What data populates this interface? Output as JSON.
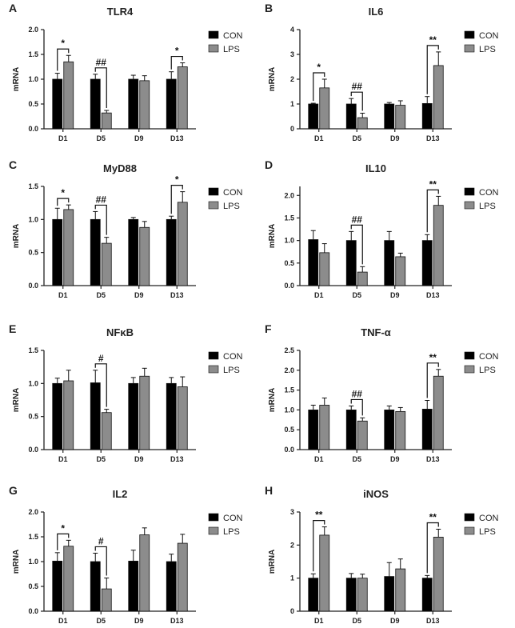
{
  "colors": {
    "con": "#000000",
    "lps": "#8c8c8c",
    "axis": "#222222"
  },
  "legend": {
    "con": "CON",
    "lps": "LPS"
  },
  "chart_data": [
    {
      "type": "bar",
      "panel": "A",
      "title": "TLR4",
      "ylabel": "mRNA",
      "ylim": [
        0,
        2.0
      ],
      "yticks": [
        "0.0",
        "0.5",
        "1.0",
        "1.5",
        "2.0"
      ],
      "ytick_values": [
        0,
        0.5,
        1,
        1.5,
        2
      ],
      "categories": [
        "D1",
        "D5",
        "D9",
        "D13"
      ],
      "series": [
        {
          "name": "CON",
          "values": [
            1.0,
            1.0,
            1.0,
            1.0
          ],
          "errors": [
            0.12,
            0.1,
            0.08,
            0.15
          ]
        },
        {
          "name": "LPS",
          "values": [
            1.35,
            0.32,
            0.97,
            1.25
          ],
          "errors": [
            0.13,
            0.05,
            0.1,
            0.08
          ]
        }
      ],
      "annotations": [
        {
          "category": "D1",
          "label": "*"
        },
        {
          "category": "D5",
          "label": "##"
        },
        {
          "category": "D13",
          "label": "*"
        }
      ]
    },
    {
      "type": "bar",
      "panel": "B",
      "title": "IL6",
      "ylabel": "mRNA",
      "ylim": [
        0,
        4
      ],
      "yticks": [
        "0",
        "1",
        "2",
        "3",
        "4"
      ],
      "ytick_values": [
        0,
        1,
        2,
        3,
        4
      ],
      "categories": [
        "D1",
        "D5",
        "D9",
        "D13"
      ],
      "series": [
        {
          "name": "CON",
          "values": [
            1.0,
            1.0,
            1.0,
            1.02
          ],
          "errors": [
            0.03,
            0.22,
            0.06,
            0.28
          ]
        },
        {
          "name": "LPS",
          "values": [
            1.65,
            0.45,
            0.95,
            2.55
          ],
          "errors": [
            0.35,
            0.18,
            0.18,
            0.55
          ]
        }
      ],
      "annotations": [
        {
          "category": "D1",
          "label": "*"
        },
        {
          "category": "D5",
          "label": "##"
        },
        {
          "category": "D13",
          "label": "**"
        }
      ]
    },
    {
      "type": "bar",
      "panel": "C",
      "title": "MyD88",
      "ylabel": "mRNA",
      "ylim": [
        0,
        1.5
      ],
      "yticks": [
        "0.0",
        "0.5",
        "1.0",
        "1.5"
      ],
      "ytick_values": [
        0,
        0.5,
        1,
        1.5
      ],
      "categories": [
        "D1",
        "D5",
        "D9",
        "D13"
      ],
      "series": [
        {
          "name": "CON",
          "values": [
            1.0,
            1.0,
            1.0,
            1.0
          ],
          "errors": [
            0.17,
            0.12,
            0.03,
            0.05
          ]
        },
        {
          "name": "LPS",
          "values": [
            1.15,
            0.64,
            0.88,
            1.26
          ],
          "errors": [
            0.07,
            0.09,
            0.09,
            0.16
          ]
        }
      ],
      "annotations": [
        {
          "category": "D1",
          "label": "*"
        },
        {
          "category": "D5",
          "label": "##"
        },
        {
          "category": "D13",
          "label": "*"
        }
      ]
    },
    {
      "type": "bar",
      "panel": "D",
      "title": "IL10",
      "ylabel": "mRNA",
      "ylim": [
        0,
        2.2
      ],
      "yticks": [
        "0.0",
        "0.5",
        "1.0",
        "1.5",
        "2.0"
      ],
      "ytick_values": [
        0,
        0.5,
        1,
        1.5,
        2
      ],
      "categories": [
        "D1",
        "D5",
        "D9",
        "D13"
      ],
      "series": [
        {
          "name": "CON",
          "values": [
            1.02,
            1.0,
            1.0,
            1.0
          ],
          "errors": [
            0.2,
            0.2,
            0.2,
            0.13
          ]
        },
        {
          "name": "LPS",
          "values": [
            0.73,
            0.3,
            0.64,
            1.78
          ],
          "errors": [
            0.2,
            0.12,
            0.08,
            0.2
          ]
        }
      ],
      "annotations": [
        {
          "category": "D5",
          "label": "##"
        },
        {
          "category": "D13",
          "label": "**"
        }
      ]
    },
    {
      "type": "bar",
      "panel": "E",
      "title": "NFκB",
      "ylabel": "mRNA",
      "ylim": [
        0,
        1.5
      ],
      "yticks": [
        "0.0",
        "0.5",
        "1.0",
        "1.5"
      ],
      "ytick_values": [
        0,
        0.5,
        1,
        1.5
      ],
      "categories": [
        "D1",
        "D5",
        "D9",
        "D13"
      ],
      "series": [
        {
          "name": "CON",
          "values": [
            1.0,
            1.01,
            1.0,
            1.0
          ],
          "errors": [
            0.08,
            0.19,
            0.09,
            0.09
          ]
        },
        {
          "name": "LPS",
          "values": [
            1.04,
            0.56,
            1.11,
            0.95
          ],
          "errors": [
            0.16,
            0.05,
            0.12,
            0.15
          ]
        }
      ],
      "annotations": [
        {
          "category": "D5",
          "label": "#"
        }
      ]
    },
    {
      "type": "bar",
      "panel": "F",
      "title": "TNF-α",
      "ylabel": "mRNA",
      "ylim": [
        0,
        2.5
      ],
      "yticks": [
        "0.0",
        "0.5",
        "1.0",
        "1.5",
        "2.0",
        "2.5"
      ],
      "ytick_values": [
        0,
        0.5,
        1,
        1.5,
        2,
        2.5
      ],
      "categories": [
        "D1",
        "D5",
        "D9",
        "D13"
      ],
      "series": [
        {
          "name": "CON",
          "values": [
            1.0,
            1.0,
            1.0,
            1.02
          ],
          "errors": [
            0.12,
            0.1,
            0.1,
            0.22
          ]
        },
        {
          "name": "LPS",
          "values": [
            1.12,
            0.72,
            0.96,
            1.85
          ],
          "errors": [
            0.18,
            0.08,
            0.1,
            0.17
          ]
        }
      ],
      "annotations": [
        {
          "category": "D5",
          "label": "##"
        },
        {
          "category": "D13",
          "label": "**"
        }
      ]
    },
    {
      "type": "bar",
      "panel": "G",
      "title": "IL2",
      "ylabel": "mRNA",
      "ylim": [
        0,
        2.0
      ],
      "yticks": [
        "0.0",
        "0.5",
        "1.0",
        "1.5",
        "2.0"
      ],
      "ytick_values": [
        0,
        0.5,
        1,
        1.5,
        2
      ],
      "categories": [
        "D1",
        "D5",
        "D9",
        "D13"
      ],
      "series": [
        {
          "name": "CON",
          "values": [
            1.01,
            1.0,
            1.01,
            1.0
          ],
          "errors": [
            0.17,
            0.17,
            0.22,
            0.15
          ]
        },
        {
          "name": "LPS",
          "values": [
            1.31,
            0.45,
            1.54,
            1.37
          ],
          "errors": [
            0.12,
            0.22,
            0.14,
            0.18
          ]
        }
      ],
      "annotations": [
        {
          "category": "D1",
          "label": "*"
        },
        {
          "category": "D5",
          "label": "#"
        }
      ]
    },
    {
      "type": "bar",
      "panel": "H",
      "title": "iNOS",
      "ylabel": "mRNA",
      "ylim": [
        0,
        3
      ],
      "yticks": [
        "0",
        "1",
        "2",
        "3"
      ],
      "ytick_values": [
        0,
        1,
        2,
        3
      ],
      "categories": [
        "D1",
        "D5",
        "D9",
        "D13"
      ],
      "series": [
        {
          "name": "CON",
          "values": [
            1.0,
            1.0,
            1.05,
            1.0
          ],
          "errors": [
            0.13,
            0.14,
            0.42,
            0.08
          ]
        },
        {
          "name": "LPS",
          "values": [
            2.3,
            1.0,
            1.28,
            2.24
          ],
          "errors": [
            0.25,
            0.12,
            0.3,
            0.24
          ]
        }
      ],
      "annotations": [
        {
          "category": "D1",
          "label": "**"
        },
        {
          "category": "D13",
          "label": "**"
        }
      ]
    }
  ]
}
